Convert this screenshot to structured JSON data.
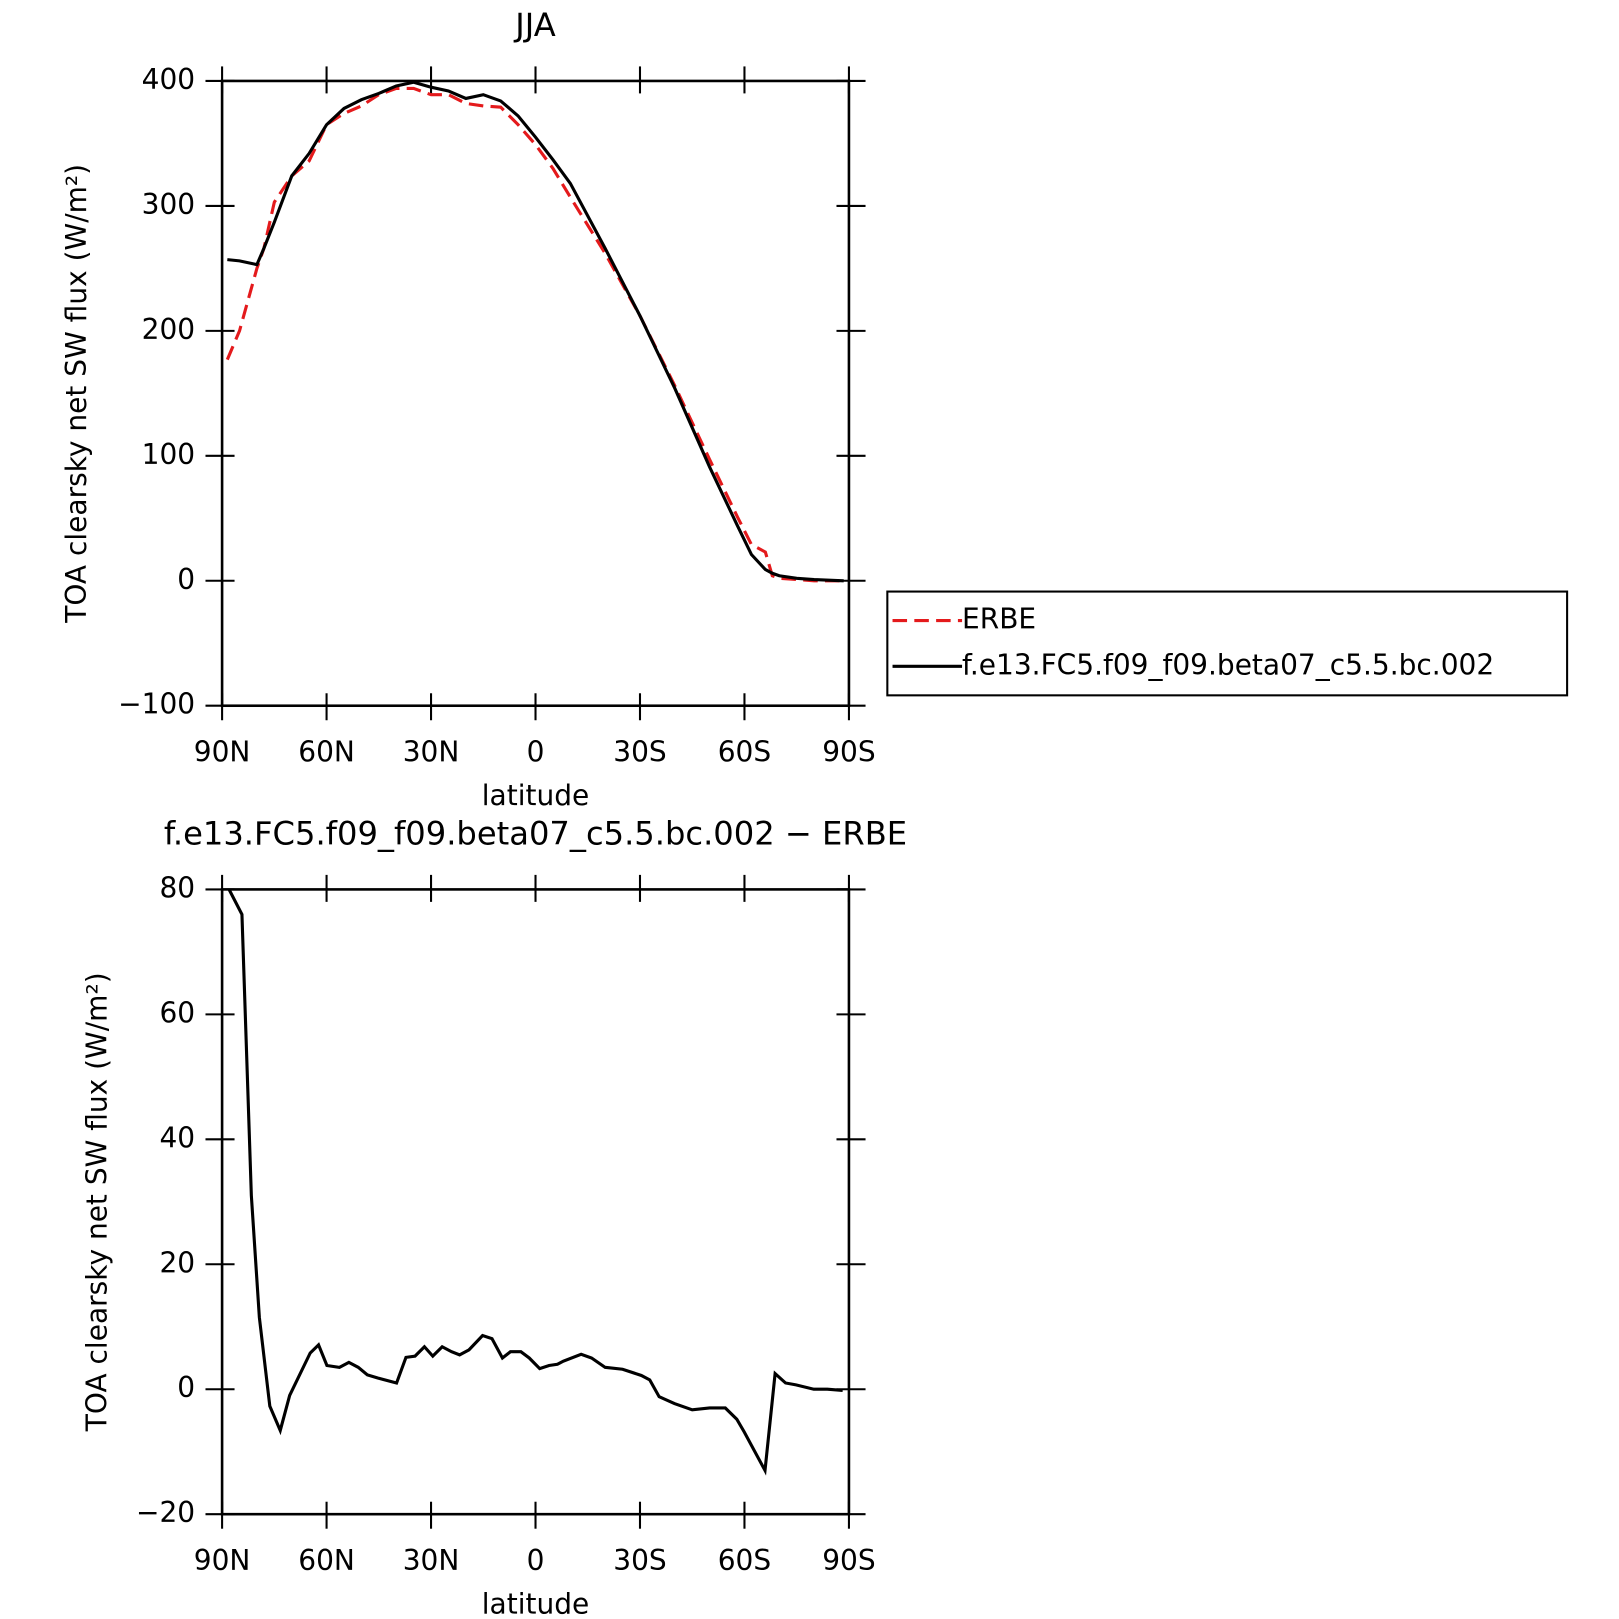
{
  "chart_data": [
    {
      "type": "line",
      "title": "JJA",
      "x_label": "latitude",
      "y_label": "TOA clearsky net SW flux (W/m²)",
      "x": [
        88.5,
        85,
        80,
        78,
        75,
        70,
        65,
        60,
        55,
        50,
        45,
        40,
        35,
        30,
        25,
        20,
        15,
        10,
        5,
        0,
        -5,
        -10,
        -20,
        -30,
        -40,
        -50,
        -58,
        -62,
        -66,
        -68,
        -70,
        -75,
        -80,
        -88.5
      ],
      "series": [
        {
          "name": "ERBE",
          "color": "#e41a1c",
          "linestyle": "dashed",
          "values": [
            177,
            200,
            250,
            266,
            303,
            324,
            336,
            365,
            374,
            380,
            389,
            394,
            394,
            389,
            389,
            382,
            380,
            379,
            365,
            349,
            330,
            307,
            262,
            212,
            156,
            97,
            51,
            29,
            23,
            4,
            2,
            1,
            0,
            0
          ]
        },
        {
          "name": "f.e13.FC5.f09_f09.beta07_c5.5.bc.002",
          "color": "#000000",
          "linestyle": "solid",
          "values": [
            257,
            256,
            253,
            266,
            287,
            324,
            342,
            365,
            378,
            385,
            390,
            396,
            399,
            395,
            392,
            386,
            389,
            384,
            372,
            355,
            337,
            318,
            266,
            212,
            154,
            91,
            44,
            21,
            9,
            6,
            4,
            2,
            1,
            0
          ]
        }
      ],
      "xlim": [
        90,
        -90
      ],
      "xticks": [
        {
          "value": 90,
          "label": "90N"
        },
        {
          "value": 60,
          "label": "60N"
        },
        {
          "value": 30,
          "label": "30N"
        },
        0,
        {
          "value": -30,
          "label": "30S"
        },
        {
          "value": -60,
          "label": "60S"
        },
        {
          "value": -90,
          "label": "90S"
        }
      ],
      "ylim": [
        -100,
        400
      ],
      "yticks": [
        {
          "value": -100,
          "label": "−100"
        },
        0,
        100,
        200,
        300,
        400
      ],
      "legend": "right"
    },
    {
      "type": "line",
      "title": "f.e13.FC5.f09_f09.beta07_c5.5.bc.002 − ERBE",
      "x_label": "latitude",
      "y_label": "TOA clearsky net SW flux (W/m²)",
      "x": [
        88,
        84.3,
        81.6,
        79.3,
        76.3,
        73.3,
        70.6,
        64.7,
        62.3,
        59.9,
        56.3,
        53.6,
        50.9,
        48.3,
        45.3,
        39.9,
        37.2,
        34.6,
        31.9,
        29.5,
        26.8,
        24.1,
        21.8,
        19.1,
        15.2,
        12.5,
        9.5,
        7.2,
        4.2,
        1.8,
        -1.2,
        -3.9,
        -6.3,
        -8,
        -13.1,
        -16.1,
        -20,
        -25,
        -30.4,
        -32.8,
        -35.5,
        -39.9,
        -45,
        -50,
        -54.5,
        -57.8,
        -59.9,
        -65.9,
        -68.8,
        -71.8,
        -74.8,
        -79.9,
        -83.8,
        -88.2
      ],
      "series": [
        {
          "color": "#000000",
          "linestyle": "solid",
          "values": [
            80,
            76,
            31,
            11.5,
            -2.7,
            -6.6,
            -1,
            5.8,
            7.1,
            3.8,
            3.5,
            4.3,
            3.5,
            2.3,
            1.8,
            1,
            5.1,
            5.3,
            6.8,
            5.3,
            6.8,
            6,
            5.5,
            6.3,
            8.6,
            8.1,
            5,
            6,
            6,
            5,
            3.3,
            3.8,
            4,
            4.5,
            5.6,
            5,
            3.5,
            3.2,
            2.2,
            1.5,
            -1.2,
            -2.3,
            -3.3,
            -3,
            -3,
            -4.8,
            -6.8,
            -13,
            2.5,
            1,
            0.7,
            0,
            0,
            -0.2
          ]
        }
      ],
      "xlim": [
        90,
        -90
      ],
      "xticks": [
        {
          "value": 90,
          "label": "90N"
        },
        {
          "value": 60,
          "label": "60N"
        },
        {
          "value": 30,
          "label": "30N"
        },
        0,
        {
          "value": -30,
          "label": "30S"
        },
        {
          "value": -60,
          "label": "60S"
        },
        {
          "value": -90,
          "label": "90S"
        }
      ],
      "ylim": [
        -20,
        80
      ],
      "yticks": [
        {
          "value": -20,
          "label": "−20"
        },
        0,
        20,
        40,
        60,
        80
      ]
    }
  ]
}
